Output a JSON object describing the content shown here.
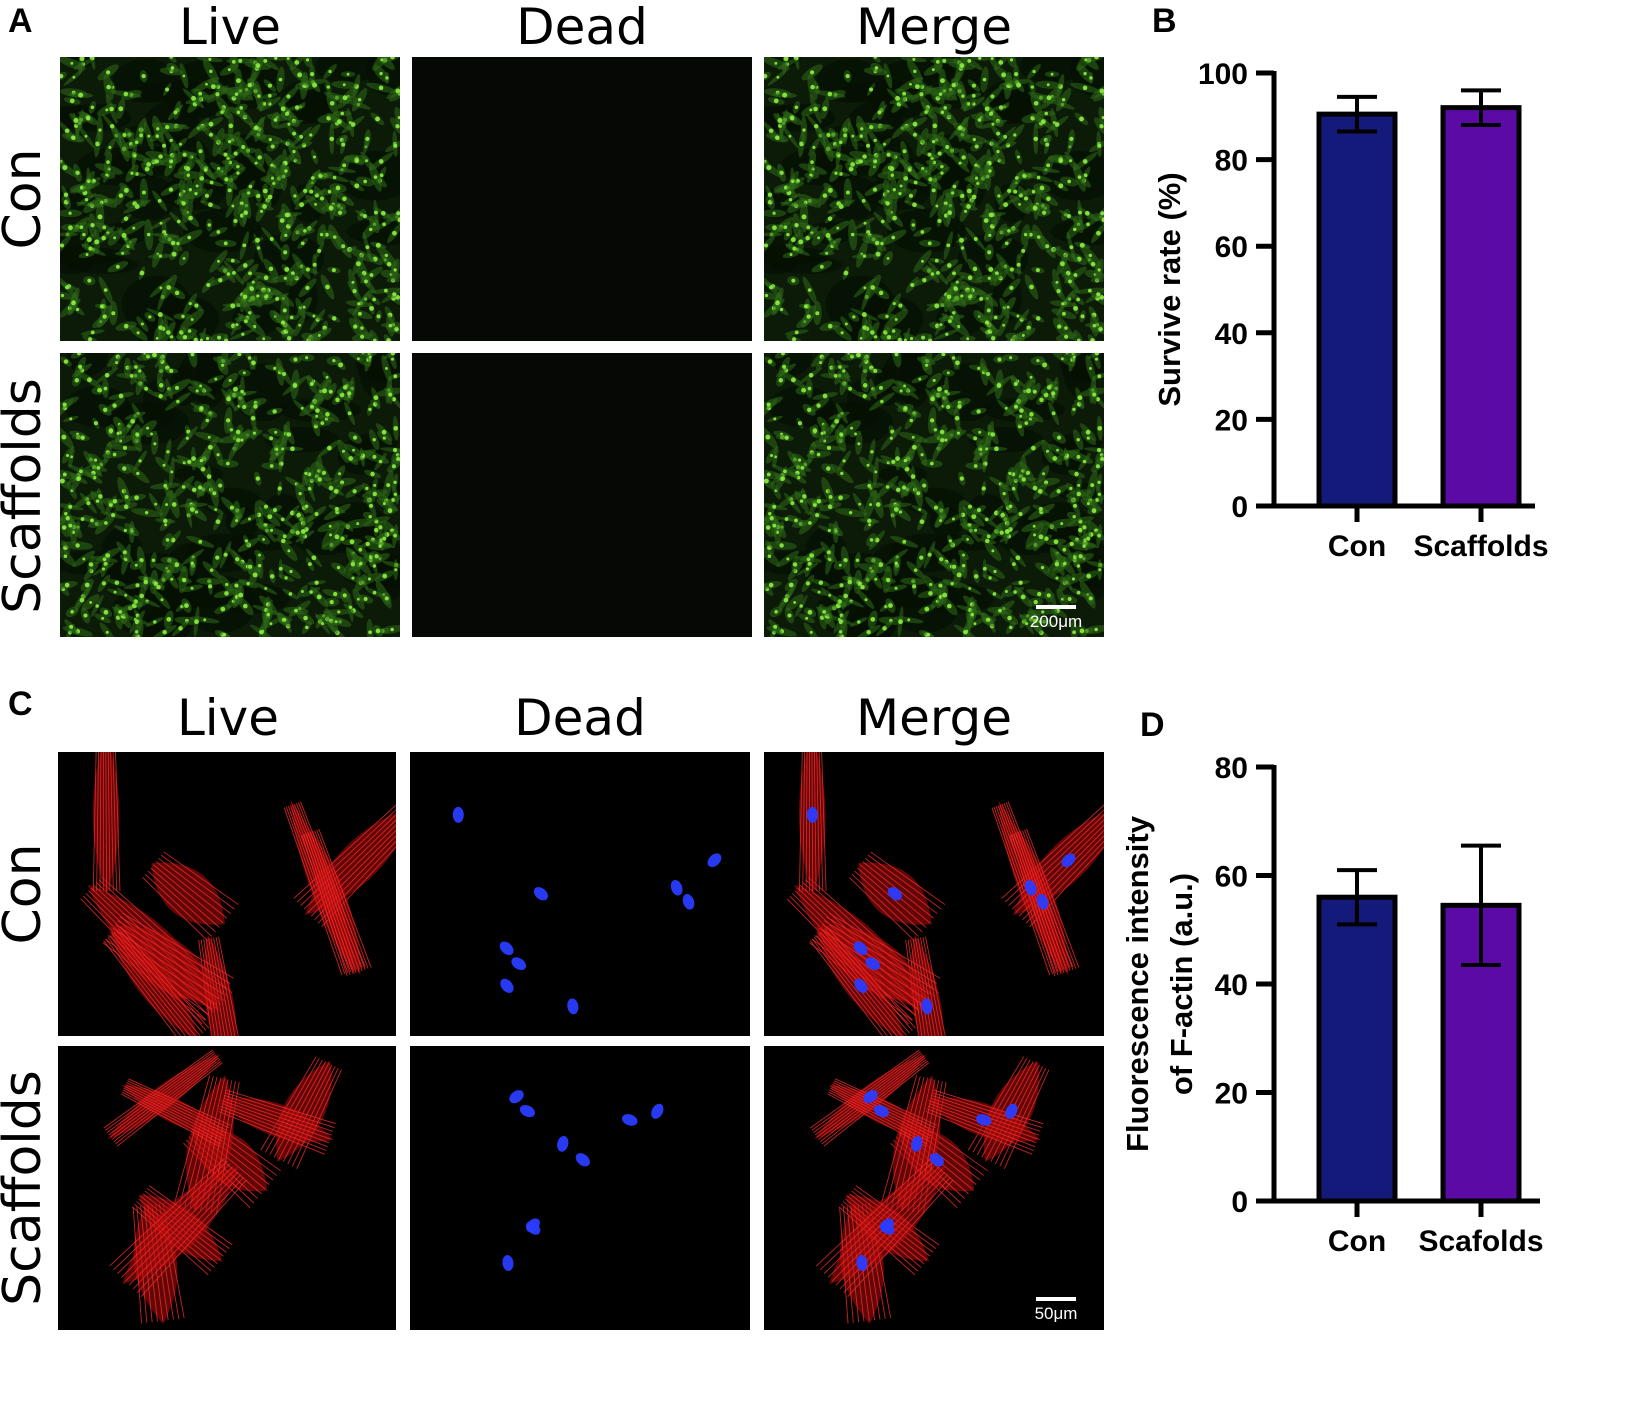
{
  "figure": {
    "panel_a": {
      "letter": "A",
      "columns": [
        "Live",
        "Dead",
        "Merge"
      ],
      "rows": [
        "Con",
        "Scaffolds"
      ],
      "scale_bar": "200μm",
      "colors": {
        "live": "#7ee03a",
        "background": "#0b1408"
      }
    },
    "panel_c": {
      "letter": "C",
      "columns": [
        "Live",
        "Dead",
        "Merge"
      ],
      "rows": [
        "Con",
        "Scaffolds"
      ],
      "scale_bar": "50μm",
      "colors": {
        "actin": "#e01010",
        "nuclei": "#2a2af0",
        "background": "#000000"
      }
    }
  },
  "chart_data": [
    {
      "letter": "B",
      "type": "bar",
      "categories": [
        "Con",
        "Scaffolds"
      ],
      "values": [
        90.5,
        92.0
      ],
      "errors": [
        4.0,
        4.0
      ],
      "ylabel": "Survive rate (%)",
      "ylim": [
        0,
        100
      ],
      "yticks": [
        0,
        20,
        40,
        60,
        80,
        100
      ],
      "colors": [
        "#141a7a",
        "#5c0aa6"
      ]
    },
    {
      "letter": "D",
      "type": "bar",
      "categories": [
        "Con",
        "Scafolds"
      ],
      "values": [
        56.0,
        54.5
      ],
      "errors": [
        5.0,
        11.0
      ],
      "ylabel_lines": [
        "Fluorescence intensity",
        "of F-actin (a.u.)"
      ],
      "ylim": [
        0,
        80
      ],
      "yticks": [
        0,
        20,
        40,
        60,
        80
      ],
      "colors": [
        "#141a7a",
        "#5c0aa6"
      ]
    }
  ]
}
